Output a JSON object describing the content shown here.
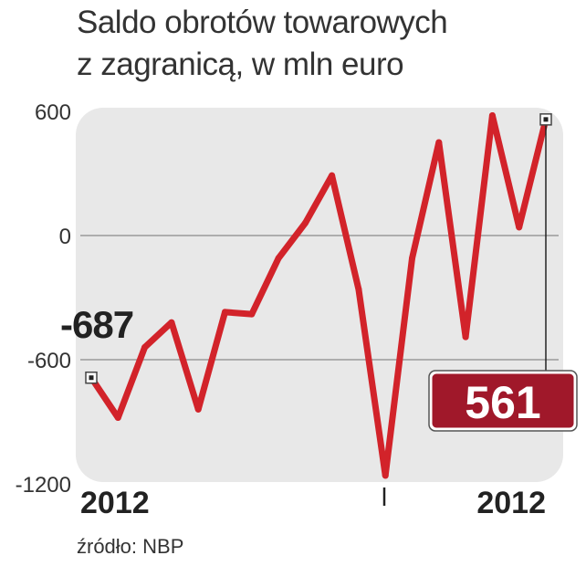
{
  "title_lines": [
    "Saldo obrotów towarowych",
    "z zagranicą, w mln euro"
  ],
  "source": "źródło: NBP",
  "colors": {
    "line": "#d2232a",
    "plot_bg": "#e8e8e8",
    "badge": "#a0182a",
    "text": "#333333"
  },
  "chart_data": {
    "type": "line",
    "title": "Saldo obrotów towarowych z zagranicą, w mln euro",
    "ylim": [
      -1200,
      600
    ],
    "yticks": [
      600,
      0,
      -600,
      -1200
    ],
    "ytick_labels": [
      "600",
      "0",
      "-600",
      "-1200"
    ],
    "grid": true,
    "x_labels": [
      "2012",
      "2012"
    ],
    "series": [
      {
        "values": [
          -687,
          -880,
          -540,
          -420,
          -840,
          -370,
          -380,
          -110,
          60,
          290,
          -260,
          -1160,
          -110,
          450,
          -490,
          580,
          40,
          561
        ]
      }
    ],
    "annotations": {
      "first": "-687",
      "last": "561"
    }
  }
}
